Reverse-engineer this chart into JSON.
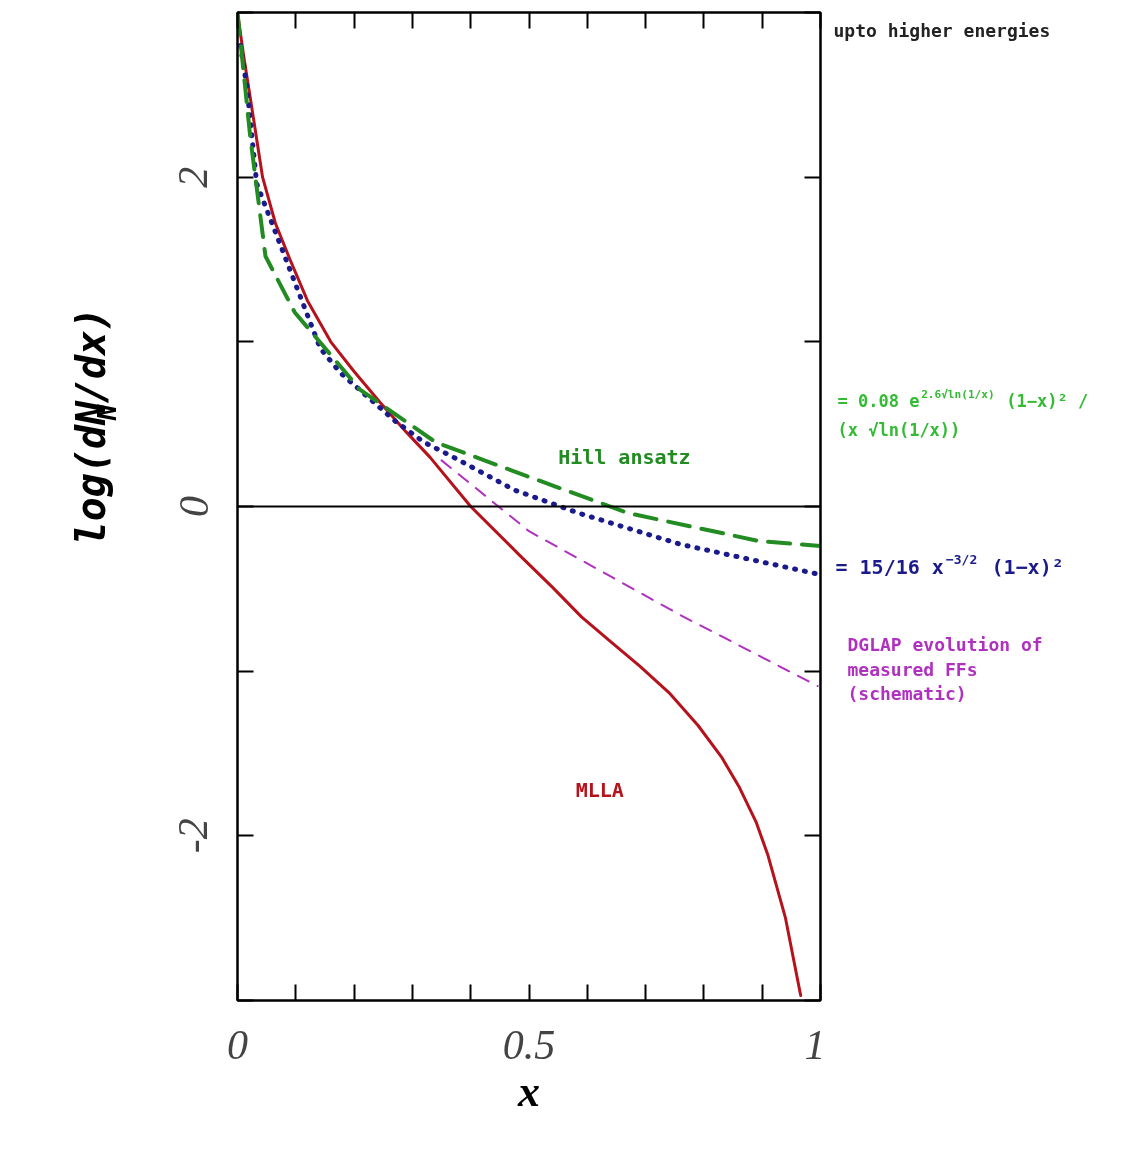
{
  "chart_data": {
    "type": "line",
    "xlabel": "x",
    "ylabel": "log(dN$_{N}$/dx)",
    "xlim": [
      0,
      1
    ],
    "ylim": [
      -3,
      3
    ],
    "xticks": [
      0,
      {
        "value": 0.1,
        "label": null
      },
      {
        "value": 0.2,
        "label": null
      },
      {
        "value": 0.3,
        "label": null
      },
      {
        "value": 0.4,
        "label": null
      },
      0.5,
      {
        "value": 0.6,
        "label": null
      },
      {
        "value": 0.7,
        "label": null
      },
      {
        "value": 0.8,
        "label": null
      },
      {
        "value": 0.9,
        "label": null
      },
      1
    ],
    "yticks": [
      {
        "value": -3,
        "label": null
      },
      -2,
      {
        "value": -1,
        "label": null
      },
      0,
      {
        "value": 1,
        "label": null
      },
      2,
      {
        "value": 3,
        "label": null
      }
    ],
    "grid": false,
    "ref_lines": [
      {
        "axis": "y",
        "value": 0,
        "label": null,
        "color": "#000000",
        "line_style": "solid"
      }
    ],
    "annotations": [
      "upto higher energies",
      "= 0.08 e$^{2.6√ln(1/x)}$ (1−x)² / (x √ln(1/x))"
    ],
    "series": [
      {
        "name": "MLLA",
        "color": "#b5121b",
        "line_style": "solid",
        "x": [
          0,
          0.01,
          0.022,
          0.043,
          0.065,
          0.09,
          0.12,
          0.16,
          0.2,
          0.245,
          0.29,
          0.33,
          0.4,
          0.485,
          0.54,
          0.59,
          0.64,
          0.69,
          0.74,
          0.79,
          0.83,
          0.86,
          0.89,
          0.91,
          0.94,
          0.966
        ],
        "values": [
          3.0,
          2.75,
          2.48,
          2.0,
          1.72,
          1.5,
          1.25,
          1.0,
          0.82,
          0.63,
          0.45,
          0.3,
          0.0,
          -0.3,
          -0.49,
          -0.67,
          -0.82,
          -0.97,
          -1.13,
          -1.33,
          -1.52,
          -1.7,
          -1.92,
          -2.12,
          -2.5,
          -2.97
        ]
      },
      {
        "name": "= 15/16 x$^{−3/2}$ (1−x)²",
        "color": "#1a1a8c",
        "line_style": "dotted",
        "x": [
          0.005,
          0.016,
          0.033,
          0.142,
          0.177,
          0.27,
          0.32,
          0.37,
          0.475,
          0.585,
          0.76,
          0.995
        ],
        "values": [
          2.8,
          2.55,
          1.96,
          0.96,
          0.81,
          0.52,
          0.39,
          0.3,
          0.1,
          -0.04,
          -0.23,
          -0.41
        ]
      },
      {
        "name": "Hill ansatz",
        "color": "#228b22",
        "line_style": "dashed",
        "x": [
          0,
          0.022,
          0.048,
          0.098,
          0.21,
          0.34,
          0.5,
          0.67,
          0.895,
          1.0
        ],
        "values": [
          3.0,
          2.24,
          1.52,
          1.18,
          0.71,
          0.39,
          0.18,
          -0.04,
          -0.21,
          -0.24
        ]
      },
      {
        "name": "DGLAP evolution of measured FFs (schematic)",
        "color": "#b030c0",
        "line_style": "dashed",
        "x": [
          0.35,
          0.5,
          0.76,
          0.995
        ],
        "values": [
          0.28,
          -0.15,
          -0.66,
          -1.09
        ]
      }
    ]
  }
}
